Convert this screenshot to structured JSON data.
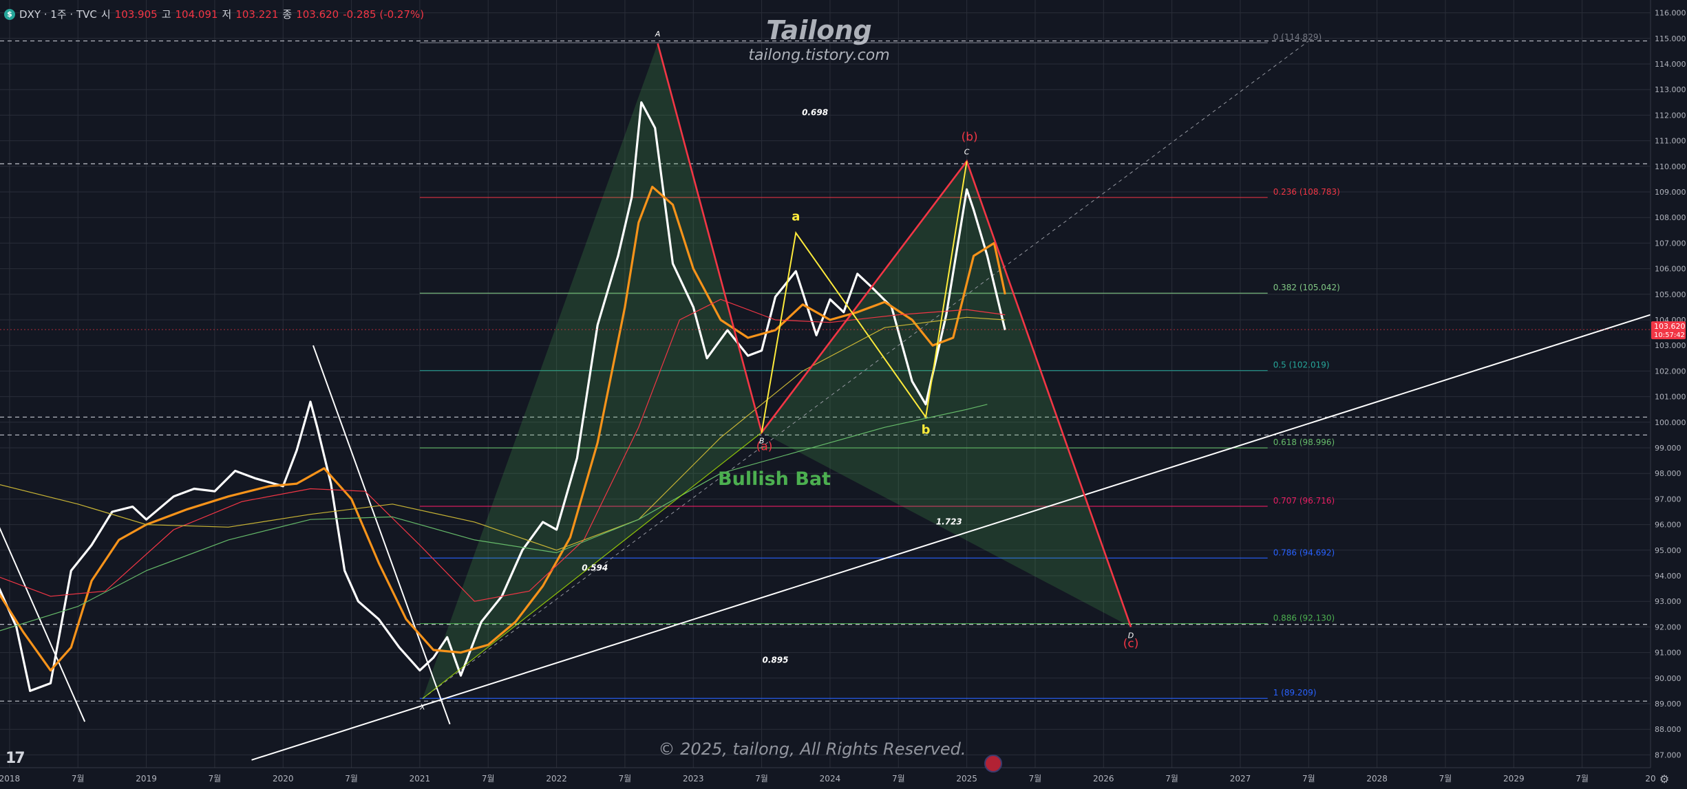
{
  "header": {
    "symbol_icon": "dollar-icon",
    "title": "DXY · 1주 · TVC",
    "open_label": "시",
    "open": "103.905",
    "high_label": "고",
    "high": "104.091",
    "low_label": "저",
    "low": "103.221",
    "close_label": "종",
    "close": "103.620",
    "change": "-0.285 (-0.27%)"
  },
  "watermark": {
    "title": "Tailong",
    "subtitle": "tailong.tistory.com"
  },
  "copyright": "© 2025, tailong, All Rights Reserved.",
  "pattern_label": "Bullish Bat",
  "colors": {
    "background": "#131722",
    "price": "#ffffff",
    "ma_fast": "#f7931a",
    "pattern": "#f23645",
    "pattern_fill": "#4caf50",
    "abc": "#ffeb3b",
    "trendline": "#ffffff",
    "red_marker": "#f23645"
  },
  "chart_data": {
    "type": "line",
    "symbol": "DXY",
    "ylim": [
      87.0,
      116.0
    ],
    "y_ticks": [
      "87.000",
      "88.000",
      "89.000",
      "90.000",
      "91.000",
      "92.000",
      "93.000",
      "94.000",
      "95.000",
      "96.000",
      "97.000",
      "98.000",
      "99.000",
      "100.000",
      "101.000",
      "102.000",
      "103.000",
      "104.000",
      "105.000",
      "106.000",
      "107.000",
      "108.000",
      "109.000",
      "110.000",
      "111.000",
      "112.000",
      "113.000",
      "114.000",
      "115.000",
      "116.000"
    ],
    "x_ticks": [
      "2018",
      "7월",
      "2019",
      "7월",
      "2020",
      "7월",
      "2021",
      "7월",
      "2022",
      "7월",
      "2023",
      "7월",
      "2024",
      "7월",
      "2025",
      "7월",
      "2026",
      "7월",
      "2027",
      "7월",
      "2028",
      "7월",
      "2029",
      "7월",
      "20"
    ],
    "x_tick_dates": [
      2018.0,
      2018.5,
      2019.0,
      2019.5,
      2020.0,
      2020.5,
      2021.0,
      2021.5,
      2022.0,
      2022.5,
      2023.0,
      2023.5,
      2024.0,
      2024.5,
      2025.0,
      2025.5,
      2026.0,
      2026.5,
      2027.0,
      2027.5,
      2028.0,
      2028.5,
      2029.0,
      2029.5,
      2030.0
    ],
    "last_price": "103.620",
    "countdown": "10:57:42",
    "series": [
      {
        "name": "",
        "color": "#ffffff",
        "x": [
          2017.9,
          2018.05,
          2018.15,
          2018.3,
          2018.45,
          2018.6,
          2018.75,
          2018.9,
          2019.0,
          2019.2,
          2019.35,
          2019.5,
          2019.65,
          2019.8,
          2020.0,
          2020.1,
          2020.2,
          2020.25,
          2020.35,
          2020.45,
          2020.55,
          2020.7,
          2020.85,
          2021.0,
          2021.1,
          2021.2,
          2021.3,
          2021.45,
          2021.6,
          2021.75,
          2021.9,
          2022.0,
          2022.15,
          2022.3,
          2022.45,
          2022.55,
          2022.62,
          2022.72,
          2022.85,
          2023.0,
          2023.1,
          2023.25,
          2023.4,
          2023.5,
          2023.6,
          2023.75,
          2023.9,
          2024.0,
          2024.1,
          2024.2,
          2024.3,
          2024.45,
          2024.6,
          2024.7,
          2024.85,
          2025.0,
          2025.05,
          2025.15,
          2025.28
        ],
        "y": [
          93.8,
          92.0,
          89.5,
          89.8,
          94.2,
          95.2,
          96.5,
          96.7,
          96.2,
          97.1,
          97.4,
          97.3,
          98.1,
          97.8,
          97.5,
          98.9,
          100.8,
          99.8,
          97.6,
          94.2,
          93.0,
          92.3,
          91.2,
          90.3,
          90.8,
          91.6,
          90.1,
          92.2,
          93.2,
          95.0,
          96.1,
          95.8,
          98.6,
          103.8,
          106.5,
          108.8,
          112.5,
          111.5,
          106.2,
          104.5,
          102.5,
          103.6,
          102.6,
          102.8,
          104.9,
          105.9,
          103.4,
          104.8,
          104.3,
          105.8,
          105.3,
          104.5,
          101.6,
          100.7,
          104.2,
          109.1,
          108.3,
          106.5,
          103.6
        ]
      },
      {
        "name": "",
        "color": "#f7931a",
        "x": [
          2017.9,
          2018.1,
          2018.3,
          2018.45,
          2018.6,
          2018.8,
          2019.0,
          2019.3,
          2019.6,
          2019.9,
          2020.1,
          2020.3,
          2020.5,
          2020.7,
          2020.9,
          2021.1,
          2021.3,
          2021.5,
          2021.7,
          2021.9,
          2022.1,
          2022.3,
          2022.5,
          2022.6,
          2022.7,
          2022.85,
          2023.0,
          2023.2,
          2023.4,
          2023.6,
          2023.8,
          2024.0,
          2024.2,
          2024.4,
          2024.6,
          2024.75,
          2024.9,
          2025.05,
          2025.2,
          2025.28
        ],
        "y": [
          93.5,
          91.8,
          90.3,
          91.2,
          93.8,
          95.4,
          96.0,
          96.6,
          97.1,
          97.5,
          97.6,
          98.2,
          97.0,
          94.5,
          92.3,
          91.1,
          91.0,
          91.3,
          92.2,
          93.6,
          95.5,
          99.2,
          104.5,
          107.8,
          109.2,
          108.5,
          106.0,
          104.0,
          103.3,
          103.6,
          104.6,
          104.0,
          104.3,
          104.7,
          104.0,
          103.0,
          103.3,
          106.5,
          107.0,
          105.0
        ]
      },
      {
        "name": "",
        "color": "#f23645",
        "x": [
          2017.9,
          2018.3,
          2018.7,
          2019.2,
          2019.7,
          2020.2,
          2020.6,
          2021.0,
          2021.4,
          2021.8,
          2022.2,
          2022.6,
          2022.9,
          2023.2,
          2023.6,
          2024.0,
          2024.5,
          2025.0,
          2025.28
        ],
        "y": [
          94.0,
          93.2,
          93.4,
          95.8,
          96.9,
          97.4,
          97.3,
          95.2,
          93.0,
          93.4,
          95.4,
          99.8,
          104.0,
          104.8,
          104.0,
          103.9,
          104.2,
          104.4,
          104.2
        ]
      },
      {
        "name": "",
        "color": "#c9b535",
        "x": [
          2017.9,
          2018.5,
          2019.0,
          2019.6,
          2020.2,
          2020.8,
          2021.4,
          2022.0,
          2022.6,
          2023.2,
          2023.8,
          2024.4,
          2025.0,
          2025.28
        ],
        "y": [
          97.6,
          96.8,
          96.0,
          95.9,
          96.4,
          96.8,
          96.1,
          95.0,
          96.2,
          99.4,
          102.0,
          103.7,
          104.1,
          104.0
        ]
      },
      {
        "name": "",
        "color": "#66bb6a",
        "x": [
          2017.9,
          2018.5,
          2019.0,
          2019.6,
          2020.2,
          2020.8,
          2021.4,
          2022.0,
          2022.6,
          2023.2,
          2023.8,
          2024.4,
          2025.0,
          2025.15
        ],
        "y": [
          91.8,
          92.8,
          94.2,
          95.4,
          96.2,
          96.3,
          95.4,
          94.9,
          96.2,
          98.0,
          98.9,
          99.8,
          100.5,
          100.7
        ]
      }
    ],
    "fib_levels": [
      {
        "label": "0 (114.829)",
        "value": 114.829,
        "color": "#787b86"
      },
      {
        "label": "0.236 (108.783)",
        "value": 108.783,
        "color": "#f23645"
      },
      {
        "label": "0.382 (105.042)",
        "value": 105.042,
        "color": "#81c784"
      },
      {
        "label": "0.5 (102.019)",
        "value": 102.019,
        "color": "#26a69a"
      },
      {
        "label": "0.618 (98.996)",
        "value": 98.996,
        "color": "#66bb6a"
      },
      {
        "label": "0.707 (96.716)",
        "value": 96.716,
        "color": "#e91e63"
      },
      {
        "label": "0.786 (94.692)",
        "value": 94.692,
        "color": "#2962ff"
      },
      {
        "label": "0.886 (92.130)",
        "value": 92.13,
        "color": "#4caf50"
      },
      {
        "label": "1 (89.209)",
        "value": 89.209,
        "color": "#2962ff"
      }
    ],
    "dashed_levels": [
      114.9,
      110.1,
      100.2,
      99.5,
      92.1,
      89.1
    ],
    "pattern_points": [
      {
        "name": "X",
        "x": 2021.02,
        "y": 89.2
      },
      {
        "name": "A",
        "x": 2022.74,
        "y": 114.8
      },
      {
        "name": "B",
        "x": 2023.5,
        "y": 99.6
      },
      {
        "name": "C",
        "x": 2025.0,
        "y": 110.2
      },
      {
        "name": "D",
        "x": 2026.2,
        "y": 92.0
      }
    ],
    "ratios": [
      {
        "text": "0.698",
        "x": 2023.89,
        "y": 112.0
      },
      {
        "text": "0.594",
        "x": 2022.28,
        "y": 94.2
      },
      {
        "text": "1.723",
        "x": 2024.87,
        "y": 96.0
      },
      {
        "text": "0.895",
        "x": 2023.6,
        "y": 90.6
      }
    ],
    "abc_points": [
      {
        "name": "",
        "x": 2023.5,
        "y": 99.6
      },
      {
        "name": "a",
        "x": 2023.75,
        "y": 107.4
      },
      {
        "name": "b",
        "x": 2024.7,
        "y": 100.2
      },
      {
        "name": "",
        "x": 2025.0,
        "y": 110.2
      }
    ],
    "wave_labels": [
      {
        "text": "(a)",
        "x": 2023.52,
        "y": 98.9
      },
      {
        "text": "(b)",
        "x": 2025.02,
        "y": 111.0
      },
      {
        "text": "(c)",
        "x": 2026.2,
        "y": 91.2
      }
    ],
    "trendlines": [
      {
        "x1": 2019.77,
        "y1": 86.8,
        "x2": 2030.0,
        "y2": 104.2
      },
      {
        "x1": 2020.22,
        "y1": 103.0,
        "x2": 2021.22,
        "y2": 88.2
      },
      {
        "x1": 2017.9,
        "y1": 96.2,
        "x2": 2018.55,
        "y2": 88.3
      }
    ],
    "projection_line": {
      "x1": 2021.02,
      "y1": 89.2,
      "x2": 2027.5,
      "y2": 114.9
    }
  }
}
